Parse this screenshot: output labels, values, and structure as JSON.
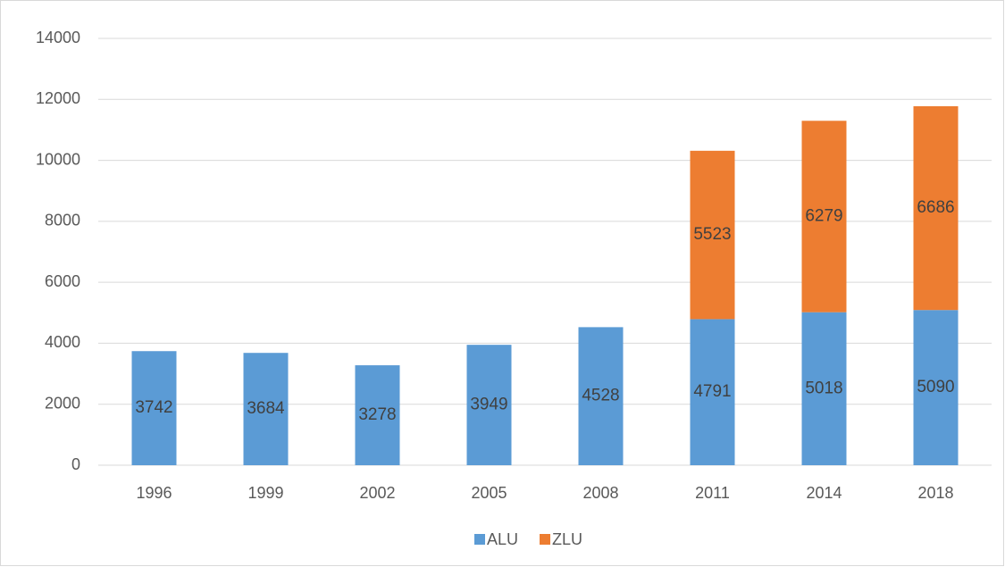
{
  "chart_data": {
    "type": "stacked_bar",
    "categories": [
      "1996",
      "1999",
      "2002",
      "2005",
      "2008",
      "2011",
      "2014",
      "2018"
    ],
    "series": [
      {
        "name": "ALU",
        "color": "#5b9bd5",
        "values": [
          3742,
          3684,
          3278,
          3949,
          4528,
          4791,
          5018,
          5090
        ]
      },
      {
        "name": "ZLU",
        "color": "#ed7d31",
        "values": [
          null,
          null,
          null,
          null,
          null,
          5523,
          6279,
          6686
        ]
      }
    ],
    "ylim": [
      0,
      14000
    ],
    "yticks": [
      0,
      2000,
      4000,
      6000,
      8000,
      10000,
      12000,
      14000
    ],
    "grid": true,
    "legend": "bottom",
    "data_labels": true
  }
}
